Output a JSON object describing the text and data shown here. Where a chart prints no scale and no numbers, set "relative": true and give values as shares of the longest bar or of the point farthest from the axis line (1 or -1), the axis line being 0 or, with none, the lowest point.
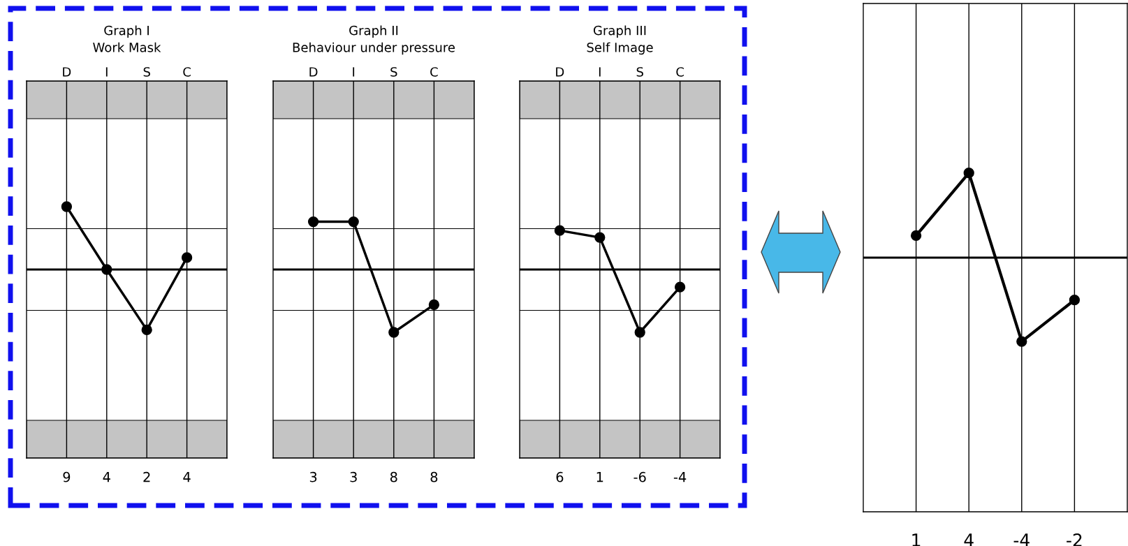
{
  "chart_data": [
    {
      "type": "line",
      "title": "Graph I",
      "subtitle": "Work Mask",
      "annotations": [
        "D",
        "I",
        "S",
        "C"
      ],
      "categories": [
        "9",
        "4",
        "2",
        "4"
      ],
      "values": [
        1,
        0,
        -0.96,
        0.19
      ],
      "relative": true,
      "color": "#000000",
      "marker": "circle",
      "grid": "x",
      "ref_lines": [
        {
          "axis": "y",
          "value": 0.65,
          "color": "#000000"
        },
        {
          "axis": "y",
          "value": -0.65,
          "color": "#000000"
        }
      ],
      "bands": [
        {
          "axis": "y",
          "from": 2.4,
          "to": 3,
          "color": "#c4c4c4"
        },
        {
          "axis": "y",
          "from": -3,
          "to": -2.4,
          "color": "#c4c4c4"
        }
      ]
    },
    {
      "type": "line",
      "title": "Graph II",
      "subtitle": "Behaviour under pressure",
      "annotations": [
        "D",
        "I",
        "S",
        "C"
      ],
      "categories": [
        "3",
        "3",
        "8",
        "8"
      ],
      "values": [
        0.76,
        0.76,
        -1,
        -0.56
      ],
      "relative": true,
      "color": "#000000",
      "marker": "circle",
      "grid": "x",
      "ref_lines": [
        {
          "axis": "y",
          "value": 0.65,
          "color": "#000000"
        },
        {
          "axis": "y",
          "value": -0.65,
          "color": "#000000"
        }
      ],
      "bands": [
        {
          "axis": "y",
          "from": 2.4,
          "to": 3,
          "color": "#c4c4c4"
        },
        {
          "axis": "y",
          "from": -3,
          "to": -2.4,
          "color": "#c4c4c4"
        }
      ]
    },
    {
      "type": "line",
      "title": "Graph III",
      "subtitle": "Self Image",
      "annotations": [
        "D",
        "I",
        "S",
        "C"
      ],
      "categories": [
        "6",
        "1",
        "-6",
        "-4"
      ],
      "values": [
        0.62,
        0.51,
        -1,
        -0.28
      ],
      "relative": true,
      "color": "#000000",
      "marker": "circle",
      "grid": "x",
      "ref_lines": [
        {
          "axis": "y",
          "value": 0.65,
          "color": "#000000"
        },
        {
          "axis": "y",
          "value": -0.65,
          "color": "#000000"
        }
      ],
      "bands": [
        {
          "axis": "y",
          "from": 2.4,
          "to": 3,
          "color": "#c4c4c4"
        },
        {
          "axis": "y",
          "from": -3,
          "to": -2.4,
          "color": "#c4c4c4"
        }
      ]
    },
    {
      "type": "line",
      "categories": [
        "1",
        "4",
        "-4",
        "-2"
      ],
      "values": [
        0.26,
        1,
        -0.99,
        -0.5
      ],
      "relative": true,
      "color": "#000000",
      "marker": "circle",
      "grid": "x"
    }
  ]
}
